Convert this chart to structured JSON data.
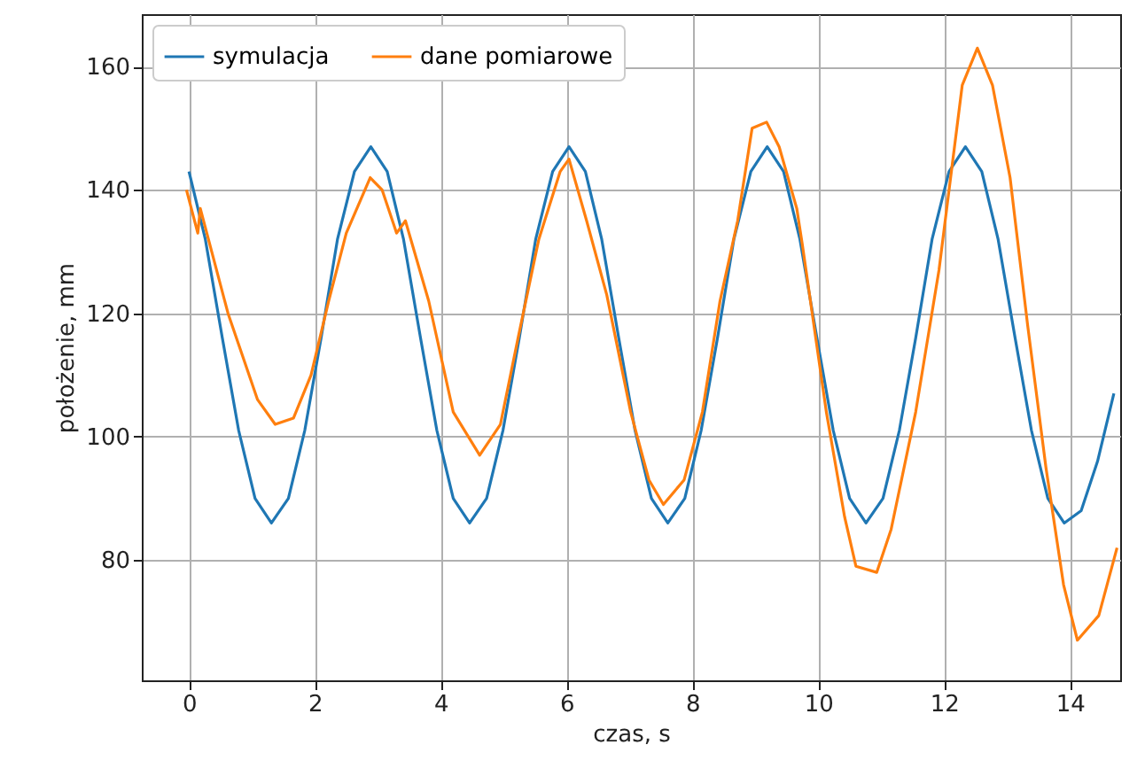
{
  "chart_data": {
    "type": "line",
    "xlabel": "czas, s",
    "ylabel": "położenie, mm",
    "xlim": [
      -0.75,
      14.8
    ],
    "ylim": [
      60.5,
      168.5
    ],
    "xticks": [
      0,
      2,
      4,
      6,
      8,
      10,
      12,
      14
    ],
    "yticks": [
      80,
      100,
      120,
      140,
      160
    ],
    "grid": true,
    "legend": "top left",
    "line_style": "solid",
    "marker": "none",
    "series": [
      {
        "name": "symulacja",
        "color": "#1f77b4",
        "x": [
          0,
          0.26,
          0.53,
          0.79,
          1.05,
          1.31,
          1.58,
          1.84,
          2.1,
          2.36,
          2.63,
          2.89,
          3.15,
          3.41,
          3.68,
          3.94,
          4.2,
          4.46,
          4.73,
          4.99,
          5.25,
          5.51,
          5.78,
          6.04,
          6.3,
          6.56,
          6.83,
          7.09,
          7.35,
          7.61,
          7.88,
          8.14,
          8.4,
          8.66,
          8.93,
          9.19,
          9.45,
          9.71,
          9.98,
          10.24,
          10.5,
          10.76,
          11.03,
          11.29,
          11.55,
          11.81,
          12.08,
          12.34,
          12.6,
          12.86,
          13.13,
          13.39,
          13.65,
          13.91,
          14.18,
          14.44,
          14.7
        ],
        "values": [
          143,
          132,
          116,
          101,
          90,
          86,
          90,
          101,
          116,
          132,
          143,
          147,
          143,
          132,
          116,
          101,
          90,
          86,
          90,
          101,
          116,
          132,
          143,
          147,
          143,
          132,
          116,
          101,
          90,
          86,
          90,
          101,
          116,
          132,
          143,
          147,
          143,
          132,
          116,
          101,
          90,
          86,
          90,
          101,
          116,
          132,
          143,
          147,
          143,
          132,
          116,
          101,
          90,
          86,
          88,
          96,
          107
        ]
      },
      {
        "name": "dane pomiarowe",
        "color": "#ff7f0e",
        "x": [
          -0.04,
          0.14,
          0.18,
          0.62,
          1.09,
          1.37,
          1.66,
          1.94,
          2.22,
          2.5,
          2.88,
          3.07,
          3.3,
          3.44,
          3.81,
          4.2,
          4.62,
          4.95,
          5.23,
          5.56,
          5.9,
          6.04,
          6.32,
          6.64,
          7.02,
          7.31,
          7.54,
          7.87,
          8.16,
          8.44,
          8.72,
          8.95,
          9.18,
          9.38,
          9.66,
          9.75,
          10.13,
          10.42,
          10.6,
          10.93,
          11.16,
          11.55,
          11.92,
          12.29,
          12.53,
          12.77,
          13.05,
          13.33,
          13.62,
          13.9,
          14.12,
          14.46,
          14.75
        ],
        "values": [
          140,
          133,
          137,
          120,
          106,
          102,
          103,
          110,
          122,
          133,
          142,
          140,
          133,
          135,
          122,
          104,
          97,
          102,
          116,
          132,
          143,
          145,
          135,
          123,
          104,
          93,
          89,
          93,
          104,
          122,
          135,
          150,
          151,
          147,
          137,
          131,
          104,
          87,
          79,
          78,
          85,
          104,
          127,
          157,
          163,
          157,
          142,
          118,
          95,
          76,
          67,
          71,
          82
        ]
      }
    ]
  }
}
